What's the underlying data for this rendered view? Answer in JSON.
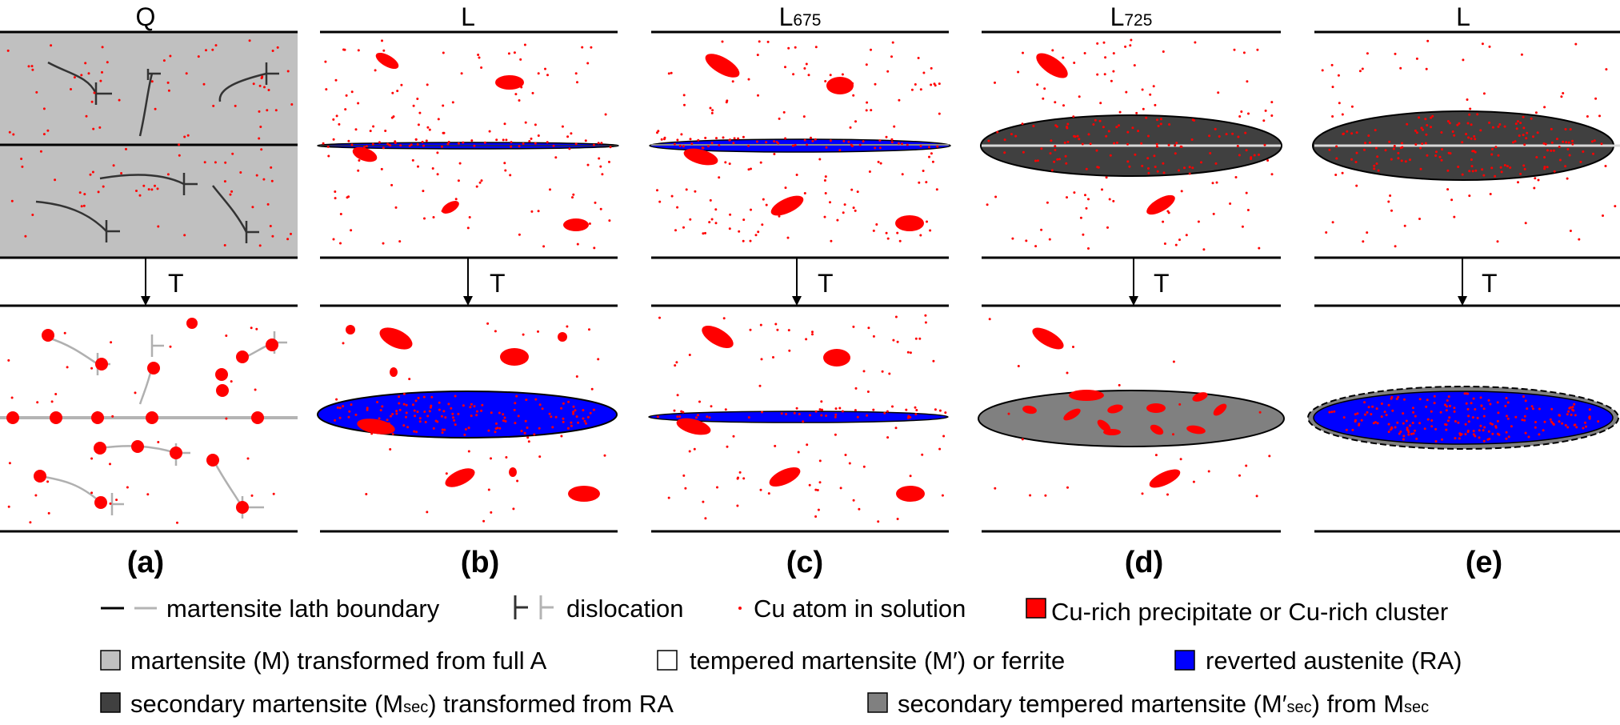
{
  "colors": {
    "martensite_gray": "#c0c0c0",
    "secondary_martensite": "#404040",
    "secondary_tempered": "#808080",
    "reverted_austenite": "#0000ff",
    "cu_red": "#ff0000",
    "line_black": "#000000",
    "line_gray": "#b4b4b4"
  },
  "arrow_label": "T",
  "columns": [
    {
      "key": "a",
      "header": "Q",
      "header_sub": "",
      "caption": "(a)"
    },
    {
      "key": "b",
      "header": "L",
      "header_sub": "",
      "caption": "(b)"
    },
    {
      "key": "c",
      "header": "L",
      "header_sub": "675",
      "caption": "(c)"
    },
    {
      "key": "d",
      "header": "L",
      "header_sub": "725",
      "caption": "(d)"
    },
    {
      "key": "e",
      "header": "L",
      "header_sub": "",
      "caption": "(e)"
    }
  ],
  "legend": {
    "row1": {
      "lath_boundary": "martensite lath boundary",
      "dislocation": "dislocation",
      "cu_atom": "Cu atom in solution",
      "cu_precipitate": "Cu-rich precipitate or Cu-rich cluster"
    },
    "row2": {
      "martensite": "martensite (M) transformed from full A",
      "tempered": "tempered martensite (M′) or ferrite",
      "reverted": "reverted austenite (RA)"
    },
    "row3": {
      "secondary_pre": "secondary martensite (M",
      "secondary_sub": "sec",
      "secondary_post": ") transformed from RA",
      "sec_tempered_pre": "secondary tempered martensite (M′",
      "sec_tempered_sub": "sec",
      "sec_tempered_mid": ") from M",
      "sec_tempered_sub2": "sec"
    }
  }
}
